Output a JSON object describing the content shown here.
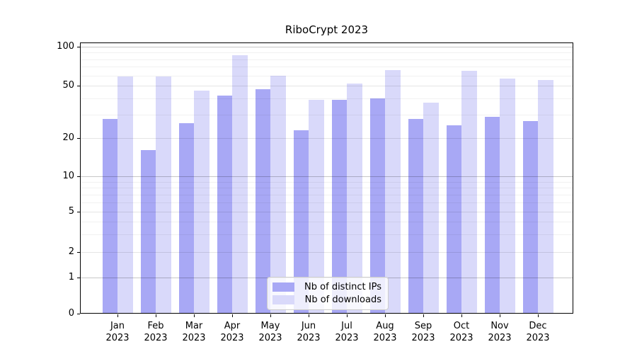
{
  "chart_data": {
    "type": "bar",
    "title": "RiboCrypt 2023",
    "categories": [
      "Jan",
      "Feb",
      "Mar",
      "Apr",
      "May",
      "Jun",
      "Jul",
      "Aug",
      "Sep",
      "Oct",
      "Nov",
      "Dec"
    ],
    "category_year": "2023",
    "series": [
      {
        "name": "Nb of distinct IPs",
        "color": "#a8a8f5",
        "values": [
          28,
          16,
          26,
          42,
          47,
          23,
          39,
          40,
          28,
          25,
          29,
          27
        ]
      },
      {
        "name": "Nb of downloads",
        "color": "#d9d9fa",
        "values": [
          59,
          59,
          46,
          86,
          60,
          39,
          52,
          66,
          37,
          65,
          57,
          55
        ]
      }
    ],
    "yticks": [
      0,
      1,
      2,
      5,
      10,
      20,
      50,
      100
    ],
    "yscale": "pseudo-log",
    "ylim": [
      0,
      100
    ],
    "xlabel": "",
    "ylabel": "",
    "grid": true,
    "legend_position": "bottom-center"
  }
}
